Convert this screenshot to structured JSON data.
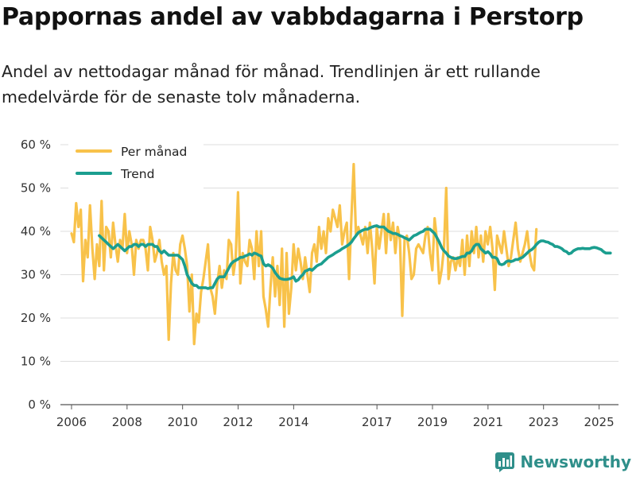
{
  "header": {
    "title": "Pappornas andel av vabbdagarna i Perstorp",
    "subtitle": "Andel av nettodagar månad för månad. Trendlinjen är ett rullande medelvärde för de senaste tolv månaderna."
  },
  "brand": {
    "name": "Newsworthy",
    "icon": "newsworthy-logo-icon"
  },
  "colors": {
    "per_month": "#f8c24a",
    "trend": "#1b9e8f",
    "grid": "#dddddd",
    "axis": "#555555",
    "brand": "#2f8f8a"
  },
  "chart_data": {
    "type": "line",
    "title": "Pappornas andel av vabbdagarna i Perstorp",
    "xlabel": "",
    "ylabel": "",
    "ylim": [
      0,
      60
    ],
    "xlim": [
      2005.6,
      2025.7
    ],
    "y_ticks": [
      0,
      10,
      20,
      30,
      40,
      50,
      60
    ],
    "y_tick_labels": [
      "0 %",
      "10 %",
      "20 %",
      "30 %",
      "40 %",
      "50 %",
      "60 %"
    ],
    "x_ticks": [
      2006,
      2008,
      2010,
      2012,
      2014,
      2017,
      2019,
      2021,
      2023,
      2025
    ],
    "x_tick_labels": [
      "2006",
      "2008",
      "2010",
      "2012",
      "2014",
      "2017",
      "2019",
      "2021",
      "2023",
      "2025"
    ],
    "legend": {
      "position": "top-left",
      "entries": [
        "Per månad",
        "Trend"
      ]
    },
    "grid": true,
    "series": [
      {
        "name": "Per månad",
        "x_start": 2006.0,
        "x_step": 0.0833,
        "values": [
          39.5,
          37.5,
          46.5,
          41,
          45,
          28.5,
          38,
          34,
          46,
          36,
          29,
          37,
          32,
          47,
          31,
          41,
          40,
          34,
          42,
          37,
          33,
          38,
          36,
          44,
          35,
          40,
          37,
          30,
          38,
          36,
          38,
          38,
          36,
          31,
          41,
          38,
          33,
          35,
          38,
          33,
          30,
          32,
          15,
          28,
          35,
          31,
          30,
          37,
          39,
          36,
          32,
          21.5,
          30,
          14,
          21,
          19,
          26,
          29,
          33,
          37,
          27,
          25,
          21,
          28,
          32,
          27,
          31,
          29,
          38,
          37,
          30,
          34,
          49,
          28,
          35,
          33,
          32,
          38,
          36,
          29,
          40,
          32,
          40,
          25,
          22,
          18,
          27,
          34,
          25,
          32,
          23,
          36,
          18,
          35,
          21,
          27,
          37,
          31,
          36,
          33,
          29,
          34,
          30,
          26,
          35,
          37,
          33,
          41,
          36,
          40,
          35,
          43,
          40,
          45,
          43,
          41,
          46,
          37,
          40,
          42,
          29,
          43,
          55.5,
          39,
          41,
          39,
          37,
          41,
          35,
          42,
          36,
          28,
          41,
          36,
          40,
          44,
          35,
          44,
          38,
          42,
          35,
          41,
          38,
          20.5,
          38,
          39,
          35,
          29,
          30,
          36,
          37,
          36,
          35,
          39,
          41,
          35,
          31,
          43,
          38,
          28,
          31,
          36,
          50,
          29,
          33,
          34,
          31,
          34,
          32,
          38,
          30,
          39,
          32,
          40,
          35,
          41,
          34,
          39,
          33,
          40,
          37,
          41,
          36,
          26.5,
          39,
          37,
          35,
          40,
          36,
          32,
          34,
          38,
          42,
          36,
          33,
          35,
          37,
          40,
          35,
          32,
          31,
          40.5
        ]
      },
      {
        "name": "Trend",
        "x_start": 2007.0,
        "x_step": 0.0833,
        "values": [
          39,
          38.5,
          38,
          37.5,
          37,
          36.5,
          36,
          36.5,
          37,
          36.5,
          36,
          35.5,
          36,
          36.5,
          36.5,
          37,
          37,
          36.5,
          37,
          37,
          36.5,
          37,
          37,
          37,
          36.5,
          36.5,
          35.5,
          35,
          35.5,
          35,
          34.5,
          34.5,
          34.5,
          34.5,
          34.5,
          34,
          33.5,
          32,
          30,
          29,
          28,
          27.5,
          27.5,
          27,
          27,
          27,
          27,
          26.8,
          27,
          27,
          28,
          29,
          29.5,
          29.5,
          29.5,
          30.5,
          31.5,
          32.5,
          33,
          33.3,
          33.6,
          34,
          34,
          34.3,
          34.5,
          34.8,
          34.5,
          35,
          34.8,
          34.5,
          34.3,
          32.5,
          32,
          32.3,
          32,
          31.5,
          30.5,
          29.8,
          29.2,
          29,
          28.9,
          28.9,
          29,
          29.2,
          29.5,
          28.5,
          28.8,
          29.5,
          30,
          30.8,
          31,
          31.3,
          31,
          31.5,
          32,
          32.3,
          32.5,
          33,
          33.5,
          34,
          34.3,
          34.6,
          35,
          35.3,
          35.6,
          36,
          36.3,
          36.6,
          37,
          37.5,
          38.3,
          39,
          39.7,
          40,
          40.3,
          40.5,
          40.5,
          40.8,
          41,
          41.2,
          41.3,
          41,
          41,
          41,
          40.5,
          40,
          39.8,
          39.5,
          39.5,
          39.3,
          39,
          38.8,
          38.5,
          38.3,
          38,
          38.5,
          39,
          39.2,
          39.5,
          39.8,
          40,
          40.5,
          40.5,
          40.5,
          40,
          39.5,
          38.5,
          37.5,
          36.3,
          35.5,
          35,
          34.3,
          34,
          33.8,
          33.7,
          33.8,
          34,
          34.2,
          34.2,
          35,
          35,
          35.5,
          36.5,
          37,
          37,
          36,
          35.5,
          35,
          35.3,
          34.8,
          34,
          34,
          33.7,
          32.5,
          32.3,
          32.5,
          33,
          33.2,
          33,
          33.2,
          33.5,
          33.5,
          33.8,
          34,
          34.5,
          35,
          35.5,
          35.8,
          36.3,
          37,
          37.5,
          37.8,
          37.8,
          37.6,
          37.5,
          37.2,
          37,
          36.5,
          36.5,
          36.3,
          36,
          35.5,
          35.3,
          34.8,
          35,
          35.5,
          35.8,
          36,
          36,
          36.1,
          36,
          36,
          36,
          36.2,
          36.3,
          36.2,
          36,
          35.8,
          35.3,
          35,
          35,
          35
        ]
      }
    ]
  }
}
